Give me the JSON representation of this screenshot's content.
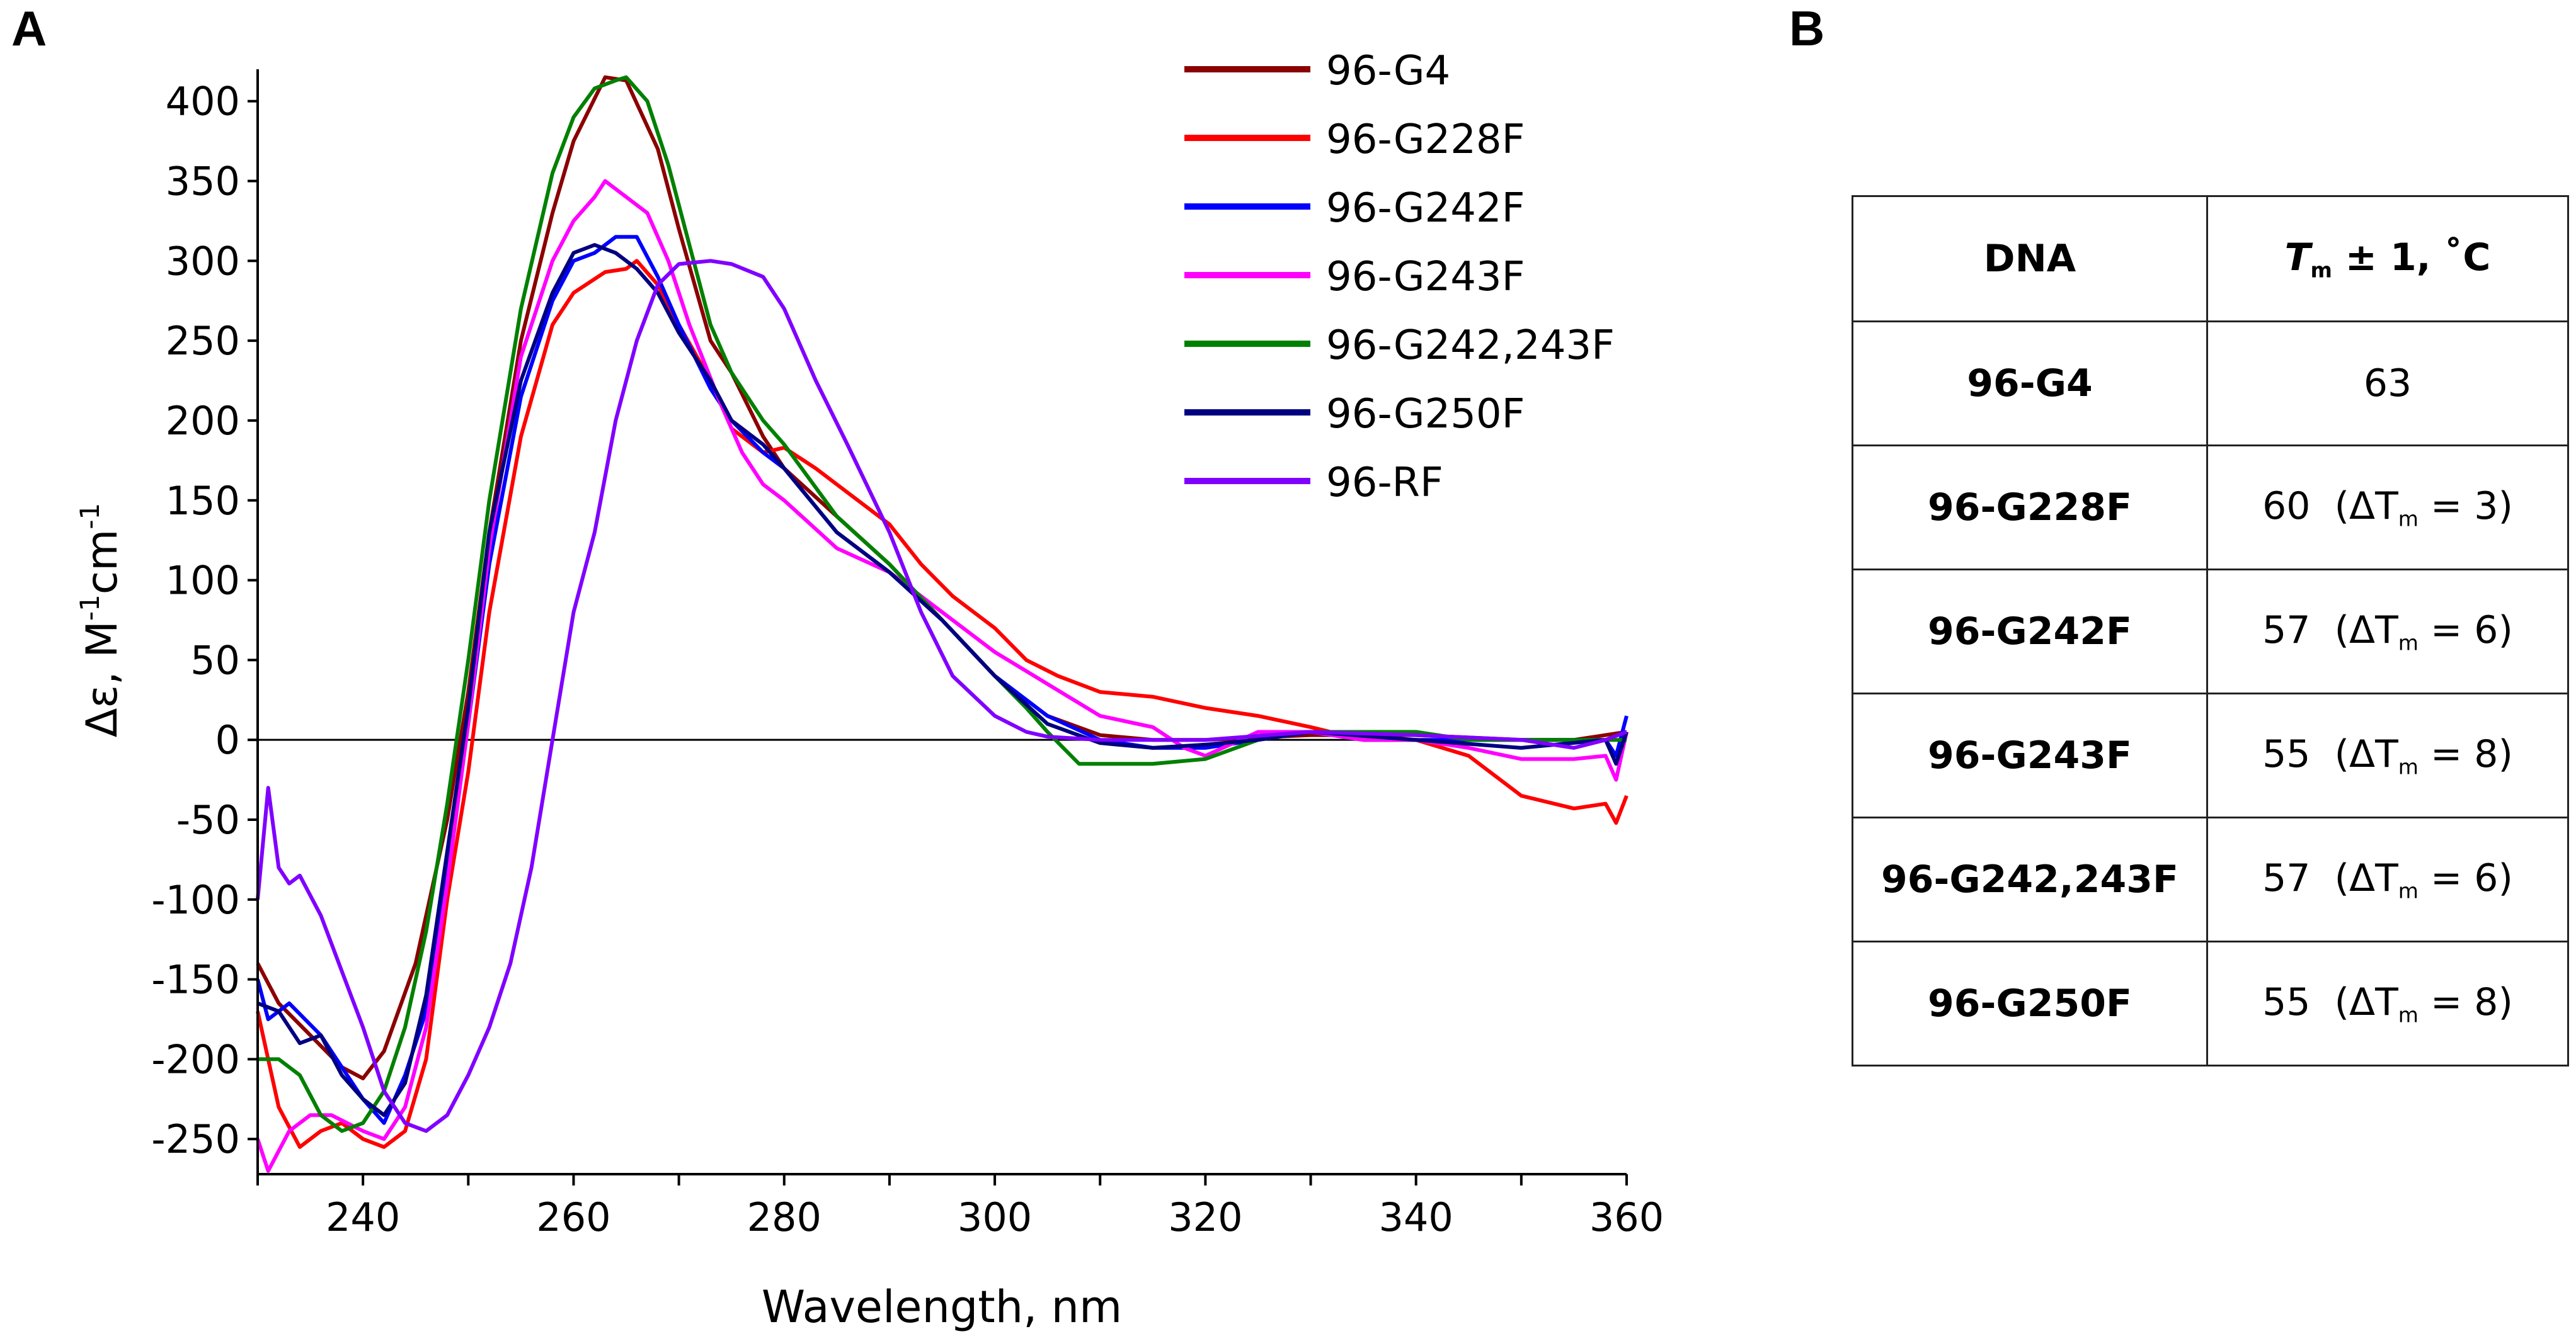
{
  "panels": {
    "a": "A",
    "b": "B"
  },
  "chart_data": {
    "type": "line",
    "xlabel": "Wavelength, nm",
    "ylabel": {
      "main": "Δε, M",
      "sup1": "-1",
      "mid": "cm",
      "sup2": "-1"
    },
    "xlim": [
      230,
      360
    ],
    "ylim": [
      -272,
      420
    ],
    "xticks": [
      240,
      260,
      280,
      300,
      320,
      340,
      360
    ],
    "yticks": [
      400,
      350,
      300,
      250,
      200,
      150,
      100,
      50,
      0,
      -50,
      -100,
      -150,
      -200,
      -250
    ],
    "legend_position": "top-right",
    "series": [
      {
        "name": "96-G4",
        "color": "#8b0000",
        "points": [
          [
            230,
            -140
          ],
          [
            232,
            -165
          ],
          [
            235,
            -185
          ],
          [
            238,
            -205
          ],
          [
            240,
            -212
          ],
          [
            242,
            -195
          ],
          [
            245,
            -140
          ],
          [
            248,
            -50
          ],
          [
            250,
            30
          ],
          [
            252,
            130
          ],
          [
            255,
            250
          ],
          [
            258,
            330
          ],
          [
            260,
            375
          ],
          [
            263,
            415
          ],
          [
            265,
            413
          ],
          [
            268,
            370
          ],
          [
            270,
            320
          ],
          [
            273,
            250
          ],
          [
            275,
            230
          ],
          [
            278,
            190
          ],
          [
            280,
            170
          ],
          [
            285,
            140
          ],
          [
            290,
            110
          ],
          [
            295,
            75
          ],
          [
            300,
            40
          ],
          [
            305,
            15
          ],
          [
            310,
            3
          ],
          [
            315,
            0
          ],
          [
            320,
            0
          ],
          [
            330,
            3
          ],
          [
            340,
            3
          ],
          [
            350,
            0
          ],
          [
            355,
            0
          ],
          [
            360,
            5
          ]
        ]
      },
      {
        "name": "96-G228F",
        "color": "#ff0000",
        "points": [
          [
            230,
            -170
          ],
          [
            232,
            -230
          ],
          [
            234,
            -255
          ],
          [
            236,
            -245
          ],
          [
            238,
            -240
          ],
          [
            240,
            -250
          ],
          [
            242,
            -255
          ],
          [
            244,
            -245
          ],
          [
            246,
            -200
          ],
          [
            248,
            -100
          ],
          [
            250,
            -20
          ],
          [
            252,
            80
          ],
          [
            255,
            190
          ],
          [
            258,
            260
          ],
          [
            260,
            280
          ],
          [
            263,
            293
          ],
          [
            265,
            295
          ],
          [
            266,
            300
          ],
          [
            268,
            285
          ],
          [
            270,
            260
          ],
          [
            273,
            225
          ],
          [
            275,
            195
          ],
          [
            278,
            180
          ],
          [
            280,
            183
          ],
          [
            283,
            170
          ],
          [
            286,
            155
          ],
          [
            290,
            135
          ],
          [
            293,
            110
          ],
          [
            296,
            90
          ],
          [
            300,
            70
          ],
          [
            303,
            50
          ],
          [
            306,
            40
          ],
          [
            310,
            30
          ],
          [
            315,
            27
          ],
          [
            320,
            20
          ],
          [
            325,
            15
          ],
          [
            330,
            8
          ],
          [
            335,
            0
          ],
          [
            340,
            0
          ],
          [
            345,
            -10
          ],
          [
            350,
            -35
          ],
          [
            355,
            -43
          ],
          [
            358,
            -40
          ],
          [
            359,
            -52
          ],
          [
            360,
            -35
          ]
        ]
      },
      {
        "name": "96-G242F",
        "color": "#0000ff",
        "points": [
          [
            230,
            -150
          ],
          [
            231,
            -175
          ],
          [
            233,
            -165
          ],
          [
            236,
            -185
          ],
          [
            238,
            -205
          ],
          [
            240,
            -225
          ],
          [
            242,
            -240
          ],
          [
            244,
            -210
          ],
          [
            246,
            -170
          ],
          [
            248,
            -80
          ],
          [
            250,
            10
          ],
          [
            252,
            110
          ],
          [
            255,
            215
          ],
          [
            258,
            275
          ],
          [
            260,
            300
          ],
          [
            262,
            305
          ],
          [
            264,
            315
          ],
          [
            266,
            315
          ],
          [
            268,
            290
          ],
          [
            270,
            260
          ],
          [
            273,
            220
          ],
          [
            275,
            200
          ],
          [
            278,
            180
          ],
          [
            280,
            170
          ],
          [
            285,
            130
          ],
          [
            290,
            105
          ],
          [
            295,
            75
          ],
          [
            300,
            40
          ],
          [
            305,
            15
          ],
          [
            310,
            0
          ],
          [
            315,
            -5
          ],
          [
            320,
            -5
          ],
          [
            325,
            0
          ],
          [
            330,
            5
          ],
          [
            335,
            0
          ],
          [
            340,
            0
          ],
          [
            350,
            0
          ],
          [
            358,
            0
          ],
          [
            359,
            -10
          ],
          [
            360,
            15
          ]
        ]
      },
      {
        "name": "96-G243F",
        "color": "#ff00ff",
        "points": [
          [
            230,
            -250
          ],
          [
            231,
            -270
          ],
          [
            233,
            -245
          ],
          [
            235,
            -235
          ],
          [
            237,
            -235
          ],
          [
            240,
            -245
          ],
          [
            242,
            -250
          ],
          [
            244,
            -230
          ],
          [
            246,
            -180
          ],
          [
            248,
            -90
          ],
          [
            250,
            10
          ],
          [
            252,
            120
          ],
          [
            255,
            240
          ],
          [
            258,
            300
          ],
          [
            260,
            325
          ],
          [
            262,
            340
          ],
          [
            263,
            350
          ],
          [
            265,
            340
          ],
          [
            267,
            330
          ],
          [
            269,
            300
          ],
          [
            271,
            260
          ],
          [
            274,
            210
          ],
          [
            276,
            180
          ],
          [
            278,
            160
          ],
          [
            280,
            150
          ],
          [
            285,
            120
          ],
          [
            290,
            105
          ],
          [
            295,
            80
          ],
          [
            300,
            55
          ],
          [
            305,
            35
          ],
          [
            310,
            15
          ],
          [
            315,
            8
          ],
          [
            318,
            -5
          ],
          [
            320,
            -10
          ],
          [
            325,
            5
          ],
          [
            330,
            5
          ],
          [
            335,
            0
          ],
          [
            340,
            0
          ],
          [
            345,
            -5
          ],
          [
            350,
            -12
          ],
          [
            355,
            -12
          ],
          [
            358,
            -10
          ],
          [
            359,
            -25
          ],
          [
            360,
            5
          ]
        ]
      },
      {
        "name": "96-G242,243F",
        "color": "#008000",
        "points": [
          [
            230,
            -200
          ],
          [
            232,
            -200
          ],
          [
            234,
            -210
          ],
          [
            236,
            -235
          ],
          [
            238,
            -245
          ],
          [
            240,
            -240
          ],
          [
            242,
            -220
          ],
          [
            244,
            -180
          ],
          [
            246,
            -120
          ],
          [
            248,
            -40
          ],
          [
            250,
            50
          ],
          [
            252,
            150
          ],
          [
            255,
            270
          ],
          [
            258,
            355
          ],
          [
            260,
            390
          ],
          [
            262,
            408
          ],
          [
            264,
            413
          ],
          [
            265,
            415
          ],
          [
            267,
            400
          ],
          [
            269,
            360
          ],
          [
            271,
            310
          ],
          [
            273,
            260
          ],
          [
            275,
            230
          ],
          [
            278,
            200
          ],
          [
            280,
            185
          ],
          [
            285,
            140
          ],
          [
            290,
            110
          ],
          [
            295,
            75
          ],
          [
            300,
            40
          ],
          [
            303,
            20
          ],
          [
            305,
            5
          ],
          [
            308,
            -15
          ],
          [
            310,
            -15
          ],
          [
            315,
            -15
          ],
          [
            320,
            -12
          ],
          [
            325,
            0
          ],
          [
            330,
            5
          ],
          [
            340,
            5
          ],
          [
            345,
            0
          ],
          [
            350,
            0
          ],
          [
            355,
            0
          ],
          [
            360,
            0
          ]
        ]
      },
      {
        "name": "96-G250F",
        "color": "#000080",
        "points": [
          [
            230,
            -165
          ],
          [
            232,
            -170
          ],
          [
            234,
            -190
          ],
          [
            236,
            -185
          ],
          [
            238,
            -210
          ],
          [
            240,
            -225
          ],
          [
            242,
            -235
          ],
          [
            244,
            -215
          ],
          [
            246,
            -160
          ],
          [
            248,
            -70
          ],
          [
            250,
            20
          ],
          [
            252,
            130
          ],
          [
            255,
            225
          ],
          [
            258,
            280
          ],
          [
            260,
            305
          ],
          [
            262,
            310
          ],
          [
            264,
            305
          ],
          [
            266,
            295
          ],
          [
            268,
            280
          ],
          [
            270,
            255
          ],
          [
            273,
            225
          ],
          [
            275,
            200
          ],
          [
            278,
            185
          ],
          [
            280,
            170
          ],
          [
            285,
            130
          ],
          [
            290,
            105
          ],
          [
            295,
            75
          ],
          [
            300,
            40
          ],
          [
            305,
            10
          ],
          [
            310,
            -2
          ],
          [
            315,
            -5
          ],
          [
            320,
            -3
          ],
          [
            325,
            0
          ],
          [
            330,
            5
          ],
          [
            340,
            0
          ],
          [
            350,
            -5
          ],
          [
            358,
            0
          ],
          [
            359,
            -15
          ],
          [
            360,
            5
          ]
        ]
      },
      {
        "name": "96-RF",
        "color": "#8000ff",
        "points": [
          [
            230,
            -100
          ],
          [
            231,
            -30
          ],
          [
            232,
            -80
          ],
          [
            233,
            -90
          ],
          [
            234,
            -85
          ],
          [
            236,
            -110
          ],
          [
            238,
            -145
          ],
          [
            240,
            -180
          ],
          [
            242,
            -220
          ],
          [
            244,
            -240
          ],
          [
            246,
            -245
          ],
          [
            248,
            -235
          ],
          [
            250,
            -210
          ],
          [
            252,
            -180
          ],
          [
            254,
            -140
          ],
          [
            256,
            -80
          ],
          [
            258,
            0
          ],
          [
            260,
            80
          ],
          [
            262,
            130
          ],
          [
            264,
            200
          ],
          [
            266,
            250
          ],
          [
            268,
            285
          ],
          [
            270,
            298
          ],
          [
            273,
            300
          ],
          [
            275,
            298
          ],
          [
            278,
            290
          ],
          [
            280,
            270
          ],
          [
            283,
            225
          ],
          [
            286,
            185
          ],
          [
            290,
            130
          ],
          [
            293,
            80
          ],
          [
            296,
            40
          ],
          [
            300,
            15
          ],
          [
            303,
            5
          ],
          [
            305,
            2
          ],
          [
            310,
            0
          ],
          [
            320,
            0
          ],
          [
            330,
            5
          ],
          [
            340,
            3
          ],
          [
            350,
            0
          ],
          [
            355,
            -5
          ],
          [
            358,
            0
          ],
          [
            360,
            5
          ]
        ]
      }
    ]
  },
  "table": {
    "header": {
      "dna": "DNA",
      "tm_t": "T",
      "tm_sub": "m",
      "tm_rest": " ± 1, ˚C"
    },
    "rows": [
      {
        "dna": "96-G4",
        "tm": "63"
      },
      {
        "dna": "96-G228F",
        "tm": "60",
        "d_pre": "  (ΔT",
        "d_sub": "m",
        "d_post": " = 3)"
      },
      {
        "dna": "96-G242F",
        "tm": "57",
        "d_pre": "  (ΔT",
        "d_sub": "m",
        "d_post": " = 6)"
      },
      {
        "dna": "96-G243F",
        "tm": "55",
        "d_pre": "  (ΔT",
        "d_sub": "m",
        "d_post": " = 8)"
      },
      {
        "dna": "96-G242,243F",
        "tm": "57",
        "d_pre": "  (ΔT",
        "d_sub": "m",
        "d_post": " = 6)"
      },
      {
        "dna": "96-G250F",
        "tm": "55",
        "d_pre": "  (ΔT",
        "d_sub": "m",
        "d_post": " = 8)"
      }
    ]
  }
}
